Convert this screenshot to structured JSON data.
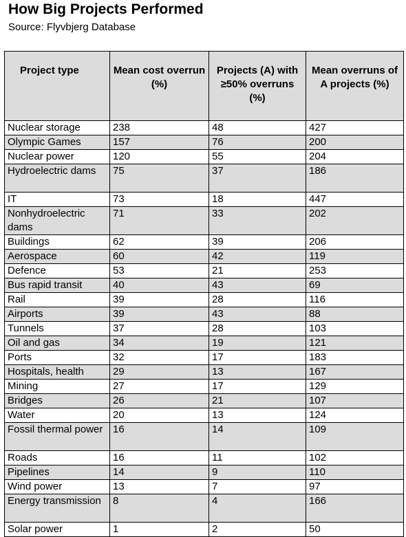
{
  "title": "How Big Projects Performed",
  "subtitle": "Source: Flyvbjerg Database",
  "table": {
    "headers": [
      "Project type",
      "Mean cost overrun (%)",
      "Projects (A) with ≥50% overruns (%)",
      "Mean overruns of A projects (%)"
    ],
    "rows": [
      [
        "Nuclear storage",
        "238",
        "48",
        "427"
      ],
      [
        "Olympic Games",
        "157",
        "76",
        "200"
      ],
      [
        "Nuclear power",
        "120",
        "55",
        "204"
      ],
      [
        "Hydroelectric dams",
        "75",
        "37",
        "186"
      ],
      [
        "IT",
        "73",
        "18",
        "447"
      ],
      [
        "Nonhydroelectric dams",
        "71",
        "33",
        "202"
      ],
      [
        "Buildings",
        "62",
        "39",
        "206"
      ],
      [
        "Aerospace",
        "60",
        "42",
        "119"
      ],
      [
        "Defence",
        "53",
        "21",
        "253"
      ],
      [
        "Bus rapid transit",
        "40",
        "43",
        "69"
      ],
      [
        "Rail",
        "39",
        "28",
        "116"
      ],
      [
        "Airports",
        "39",
        "43",
        "88"
      ],
      [
        "Tunnels",
        "37",
        "28",
        "103"
      ],
      [
        "Oil and gas",
        "34",
        "19",
        "121"
      ],
      [
        "Ports",
        "32",
        "17",
        "183"
      ],
      [
        "Hospitals, health",
        "29",
        "13",
        "167"
      ],
      [
        "Mining",
        "27",
        "17",
        "129"
      ],
      [
        "Bridges",
        "26",
        "21",
        "107"
      ],
      [
        "Water",
        "20",
        "13",
        "124"
      ],
      [
        "Fossil thermal power",
        "16",
        "14",
        "109"
      ],
      [
        "Roads",
        "16",
        "11",
        "102"
      ],
      [
        "Pipelines",
        "14",
        "9",
        "110"
      ],
      [
        "Wind power",
        "13",
        "7",
        "97"
      ],
      [
        "Energy transmission",
        "8",
        "4",
        "166"
      ],
      [
        "Solar power",
        "1",
        "2",
        "50"
      ]
    ]
  },
  "colors": {
    "header_bg": "#dcdcdc",
    "stripe_bg": "#dcdcdc",
    "border": "#000000"
  }
}
